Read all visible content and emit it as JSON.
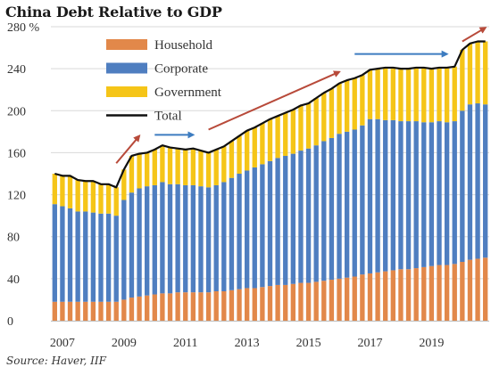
{
  "title": "China Debt Relative to GDP",
  "source": "Source: Haver, IIF",
  "colors": {
    "household": "#E2884A",
    "corporate": "#4F7EC0",
    "government": "#F5C518",
    "total": "#101010",
    "arrow_red": "#B84A3A",
    "arrow_blue": "#3D7CC0",
    "gridline": "#D9D9D9"
  },
  "chart_data": {
    "type": "bar",
    "stacked": true,
    "title": "China Debt Relative to GDP",
    "ylabel": "%",
    "ylim": [
      0,
      280
    ],
    "yticks": [
      0,
      40,
      80,
      120,
      160,
      200,
      240,
      280
    ],
    "ytick_labels": [
      "0",
      "40",
      "80",
      "120",
      "160",
      "200",
      "240",
      "280 %"
    ],
    "xticks": [
      "2007",
      "2009",
      "2011",
      "2013",
      "2015",
      "2017",
      "2019"
    ],
    "x": [
      "2006Q4",
      "2007Q1",
      "2007Q2",
      "2007Q3",
      "2007Q4",
      "2008Q1",
      "2008Q2",
      "2008Q3",
      "2008Q4",
      "2009Q1",
      "2009Q2",
      "2009Q3",
      "2009Q4",
      "2010Q1",
      "2010Q2",
      "2010Q3",
      "2010Q4",
      "2011Q1",
      "2011Q2",
      "2011Q3",
      "2011Q4",
      "2012Q1",
      "2012Q2",
      "2012Q3",
      "2012Q4",
      "2013Q1",
      "2013Q2",
      "2013Q3",
      "2013Q4",
      "2014Q1",
      "2014Q2",
      "2014Q3",
      "2014Q4",
      "2015Q1",
      "2015Q2",
      "2015Q3",
      "2015Q4",
      "2016Q1",
      "2016Q2",
      "2016Q3",
      "2016Q4",
      "2017Q1",
      "2017Q2",
      "2017Q3",
      "2017Q4",
      "2018Q1",
      "2018Q2",
      "2018Q3",
      "2018Q4",
      "2019Q1",
      "2019Q2",
      "2019Q3",
      "2019Q4",
      "2020Q1",
      "2020Q2",
      "2020Q3",
      "2020Q4"
    ],
    "grid": false,
    "legend_position": "top",
    "series": [
      {
        "name": "Household",
        "type": "bar",
        "values": [
          18,
          18,
          18,
          18,
          18,
          18,
          18,
          18,
          18,
          20,
          22,
          23,
          24,
          25,
          26,
          26,
          27,
          27,
          27,
          27,
          27,
          28,
          28,
          29,
          30,
          31,
          31,
          32,
          33,
          34,
          34,
          35,
          36,
          36,
          37,
          38,
          39,
          40,
          41,
          42,
          44,
          45,
          46,
          47,
          48,
          49,
          49,
          50,
          51,
          52,
          53,
          53,
          54,
          56,
          58,
          59,
          60
        ]
      },
      {
        "name": "Corporate",
        "type": "bar",
        "values": [
          93,
          91,
          89,
          86,
          86,
          85,
          84,
          84,
          82,
          95,
          100,
          103,
          104,
          104,
          106,
          104,
          103,
          102,
          102,
          101,
          100,
          101,
          104,
          107,
          110,
          112,
          115,
          117,
          119,
          121,
          123,
          124,
          126,
          128,
          130,
          133,
          135,
          138,
          139,
          140,
          142,
          147,
          146,
          144,
          143,
          141,
          141,
          140,
          138,
          137,
          137,
          136,
          136,
          144,
          148,
          148,
          146
        ]
      },
      {
        "name": "Government",
        "type": "bar",
        "values": [
          29,
          29,
          31,
          30,
          29,
          30,
          28,
          28,
          27,
          29,
          35,
          33,
          32,
          34,
          35,
          35,
          34,
          34,
          35,
          34,
          33,
          34,
          34,
          35,
          36,
          38,
          38,
          39,
          40,
          40,
          41,
          42,
          43,
          43,
          45,
          46,
          47,
          48,
          49,
          49,
          48,
          47,
          48,
          50,
          49,
          50,
          50,
          51,
          52,
          51,
          51,
          52,
          52,
          58,
          58,
          59,
          60
        ]
      },
      {
        "name": "Total",
        "type": "line",
        "values": [
          140,
          138,
          138,
          134,
          133,
          133,
          130,
          130,
          127,
          144,
          157,
          159,
          160,
          163,
          167,
          165,
          164,
          163,
          164,
          162,
          160,
          163,
          166,
          171,
          176,
          181,
          184,
          188,
          192,
          195,
          198,
          201,
          205,
          207,
          212,
          217,
          221,
          226,
          229,
          231,
          234,
          239,
          240,
          241,
          241,
          240,
          240,
          241,
          241,
          240,
          241,
          241,
          242,
          258,
          264,
          266,
          266
        ]
      }
    ],
    "annotations": [
      {
        "type": "arrow",
        "color": "red",
        "from": {
          "x": "2008Q4",
          "y": 150
        },
        "to": {
          "x": "2009Q3",
          "y": 176
        }
      },
      {
        "type": "arrow",
        "color": "blue",
        "from": {
          "x": "2010Q1",
          "y": 177
        },
        "to": {
          "x": "2011Q2",
          "y": 177
        }
      },
      {
        "type": "arrow",
        "color": "red",
        "from": {
          "x": "2011Q4",
          "y": 182
        },
        "to": {
          "x": "2016Q1",
          "y": 237
        }
      },
      {
        "type": "arrow",
        "color": "blue",
        "from": {
          "x": "2016Q3",
          "y": 254
        },
        "to": {
          "x": "2019Q3",
          "y": 254
        }
      },
      {
        "type": "arrow",
        "color": "red",
        "from": {
          "x": "2020Q1",
          "y": 266
        },
        "to": {
          "x": "2020Q4",
          "y": 279
        }
      }
    ]
  }
}
